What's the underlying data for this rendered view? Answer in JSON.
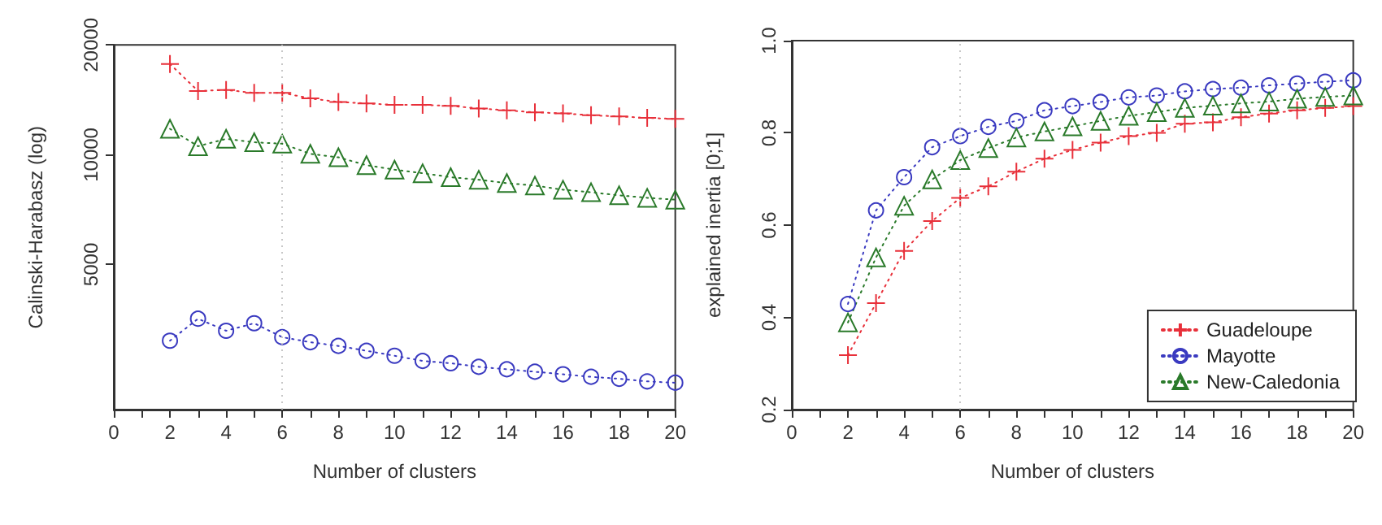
{
  "chart_data": [
    {
      "type": "line",
      "xlabel": "Number of clusters",
      "ylabel": "Calinski-Harabasz (log)",
      "log": "y",
      "grid": false,
      "legend": false,
      "line_style": "dotted",
      "xlim": [
        0,
        20
      ],
      "xticks": [
        0,
        {
          "value": 1,
          "label": null
        },
        2,
        {
          "value": 3,
          "label": null
        },
        4,
        {
          "value": 5,
          "label": null
        },
        6,
        {
          "value": 7,
          "label": null
        },
        8,
        {
          "value": 9,
          "label": null
        },
        10,
        {
          "value": 11,
          "label": null
        },
        12,
        {
          "value": 13,
          "label": null
        },
        14,
        {
          "value": 15,
          "label": null
        },
        16,
        {
          "value": 17,
          "label": null
        },
        18,
        {
          "value": 19,
          "label": null
        },
        20
      ],
      "ylim": [
        2000,
        20000
      ],
      "yticks": [
        5000,
        10000,
        20000
      ],
      "x": [
        2,
        3,
        4,
        5,
        6,
        7,
        8,
        9,
        10,
        11,
        12,
        13,
        14,
        15,
        16,
        17,
        18,
        19,
        20
      ],
      "ref_lines": [
        {
          "axis": "x",
          "value": 6,
          "color": "#c8c8c8",
          "line_style": "dotted"
        }
      ],
      "series": [
        {
          "color": "#e8303a",
          "marker": "cross",
          "values": [
            17740,
            14960,
            15060,
            14780,
            14780,
            14280,
            13960,
            13830,
            13700,
            13700,
            13620,
            13400,
            13240,
            13070,
            12990,
            12830,
            12740,
            12620,
            12540
          ]
        },
        {
          "color": "#3a3ac0",
          "marker": "circle",
          "values": [
            3090,
            3550,
            3290,
            3450,
            3160,
            3060,
            2990,
            2900,
            2810,
            2720,
            2680,
            2620,
            2580,
            2540,
            2500,
            2460,
            2430,
            2390,
            2370
          ]
        },
        {
          "color": "#2a7a2a",
          "marker": "triangle",
          "values": [
            11780,
            10550,
            11060,
            10820,
            10720,
            10060,
            9840,
            9360,
            9100,
            8900,
            8680,
            8540,
            8360,
            8230,
            8020,
            7890,
            7740,
            7620,
            7530
          ]
        }
      ]
    },
    {
      "type": "line",
      "xlabel": "Number of clusters",
      "ylabel": "explained inertia [0;1]",
      "grid": false,
      "legend": "bottom right",
      "line_style": "dotted",
      "xlim": [
        0,
        20
      ],
      "xticks": [
        0,
        {
          "value": 1,
          "label": null
        },
        2,
        {
          "value": 3,
          "label": null
        },
        4,
        {
          "value": 5,
          "label": null
        },
        6,
        {
          "value": 7,
          "label": null
        },
        8,
        {
          "value": 9,
          "label": null
        },
        10,
        {
          "value": 11,
          "label": null
        },
        12,
        {
          "value": 13,
          "label": null
        },
        14,
        {
          "value": 15,
          "label": null
        },
        16,
        {
          "value": 17,
          "label": null
        },
        18,
        {
          "value": 19,
          "label": null
        },
        20
      ],
      "ylim": [
        0.2,
        1.0
      ],
      "yticks": [
        0.2,
        0.4,
        0.6,
        0.8,
        {
          "value": 1,
          "label": "1.0"
        }
      ],
      "x": [
        2,
        3,
        4,
        5,
        6,
        7,
        8,
        9,
        10,
        11,
        12,
        13,
        14,
        15,
        16,
        17,
        18,
        19,
        20
      ],
      "ref_lines": [
        {
          "axis": "x",
          "value": 6,
          "color": "#c8c8c8",
          "line_style": "dotted"
        }
      ],
      "series": [
        {
          "name": "Guadeloupe",
          "color": "#e8303a",
          "marker": "cross",
          "values": [
            0.318,
            0.431,
            0.544,
            0.609,
            0.659,
            0.684,
            0.716,
            0.744,
            0.763,
            0.779,
            0.793,
            0.8,
            0.82,
            0.823,
            0.834,
            0.842,
            0.849,
            0.854,
            0.858
          ]
        },
        {
          "name": "Mayotte",
          "color": "#3a3ac0",
          "marker": "circle",
          "values": [
            0.429,
            0.632,
            0.704,
            0.769,
            0.793,
            0.813,
            0.826,
            0.849,
            0.858,
            0.867,
            0.877,
            0.881,
            0.89,
            0.895,
            0.898,
            0.903,
            0.907,
            0.911,
            0.914
          ]
        },
        {
          "name": "New-Caledonia",
          "color": "#2a7a2a",
          "marker": "triangle",
          "values": [
            0.389,
            0.53,
            0.642,
            0.699,
            0.741,
            0.767,
            0.79,
            0.803,
            0.814,
            0.826,
            0.837,
            0.845,
            0.854,
            0.859,
            0.864,
            0.868,
            0.874,
            0.878,
            0.881
          ]
        }
      ]
    }
  ]
}
